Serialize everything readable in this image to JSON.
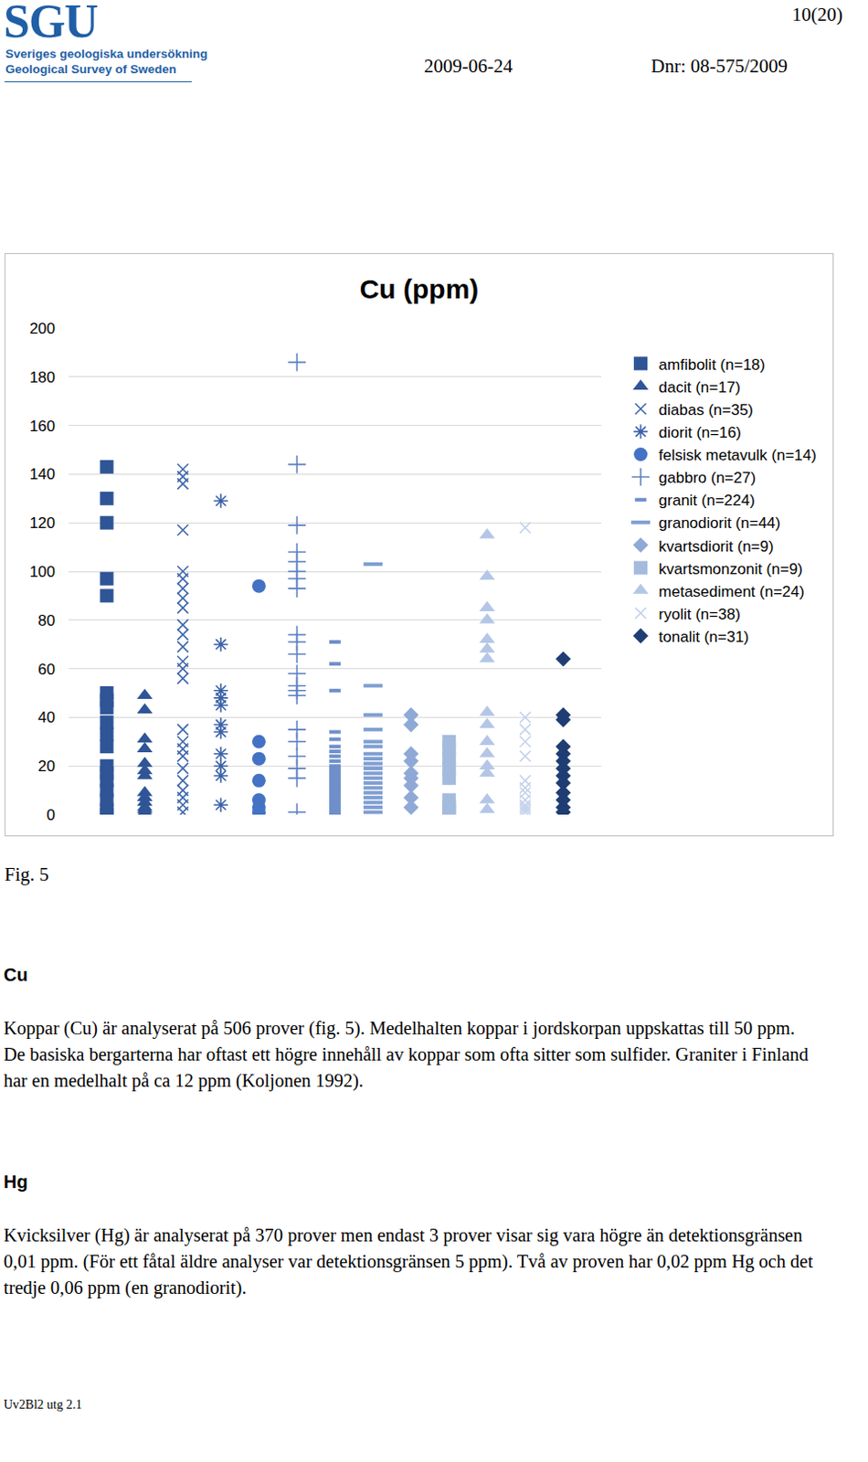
{
  "header": {
    "logo": "SGU",
    "org_sv": "Sveriges geologiska undersökning",
    "org_en": "Geological Survey of Sweden",
    "page": "10(20)",
    "date": "2009-06-24",
    "dnr": "Dnr: 08-575/2009"
  },
  "chart_data": {
    "type": "scatter",
    "title": "Cu (ppm)",
    "ylim": [
      0,
      200
    ],
    "yticks": [
      0,
      20,
      40,
      60,
      80,
      100,
      120,
      140,
      160,
      180,
      200
    ],
    "grid": true,
    "legend": "right",
    "tick_labels": "y",
    "series": [
      {
        "name": "amfibolit (n=18)",
        "color": "#2f5597",
        "marker": "square",
        "values": [
          143,
          130,
          120,
          97,
          90,
          50,
          47,
          44,
          38,
          33,
          28,
          20,
          17,
          14,
          10,
          6,
          2,
          0
        ]
      },
      {
        "name": "dacit (n=17)",
        "color": "#2f5597",
        "marker": "triangle",
        "values": [
          49,
          43,
          31,
          27,
          21,
          18,
          16,
          9,
          7,
          5,
          3,
          2,
          1,
          0
        ]
      },
      {
        "name": "diabas (n=35)",
        "color": "#3f68ad",
        "marker": "x",
        "values": [
          142,
          139,
          136,
          117,
          100,
          97,
          93,
          89,
          85,
          78,
          74,
          69,
          63,
          60,
          56,
          35,
          30,
          27,
          24,
          19,
          14,
          10,
          7,
          4,
          1
        ]
      },
      {
        "name": "diorit (n=16)",
        "color": "#3a62a8",
        "marker": "asterisk",
        "values": [
          129,
          70,
          51,
          48,
          45,
          37,
          34,
          25,
          20,
          16,
          4
        ]
      },
      {
        "name": "felsisk metavulk (n=14)",
        "color": "#4472c4",
        "marker": "circle",
        "values": [
          94,
          30,
          23,
          14,
          6,
          3,
          1
        ]
      },
      {
        "name": "gabbro (n=27)",
        "color": "#5b7fc0",
        "marker": "plus",
        "values": [
          186,
          144,
          119,
          108,
          104,
          100,
          97,
          93,
          74,
          71,
          66,
          58,
          53,
          51,
          49,
          35,
          30,
          24,
          19,
          15,
          1
        ]
      },
      {
        "name": "granit (n=224)",
        "color": "#6f8fca",
        "marker": "dash",
        "values": [
          71,
          62,
          51,
          34,
          31,
          28,
          26,
          24,
          22,
          20,
          19,
          18,
          17,
          16,
          15,
          14,
          13,
          12,
          11,
          10,
          9,
          8,
          7,
          6,
          5,
          4,
          3,
          2,
          1,
          0
        ]
      },
      {
        "name": "granodiorit (n=44)",
        "color": "#7f9fd3",
        "marker": "long-dash",
        "values": [
          103,
          53,
          41,
          35,
          30,
          28,
          25,
          23,
          21,
          19,
          17,
          15,
          13,
          11,
          9,
          7,
          5,
          3,
          1
        ]
      },
      {
        "name": "kvartsdiorit (n=9)",
        "color": "#8fa9d6",
        "marker": "diamond",
        "values": [
          41,
          37,
          25,
          22,
          17,
          15,
          12,
          7,
          3
        ]
      },
      {
        "name": "kvartsmonzonit (n=9)",
        "color": "#a4bbde",
        "marker": "square",
        "values": [
          30,
          27,
          23,
          19,
          15,
          6,
          3,
          2,
          1
        ]
      },
      {
        "name": "metasediment (n=24)",
        "color": "#b4c6e7",
        "marker": "triangle",
        "values": [
          115,
          98,
          85,
          80,
          72,
          68,
          64,
          42,
          37,
          30,
          25,
          20,
          17,
          6,
          2
        ]
      },
      {
        "name": "ryolit (n=38)",
        "color": "#c5d3ec",
        "marker": "x",
        "values": [
          118,
          40,
          35,
          30,
          24,
          14,
          11,
          9,
          6,
          4,
          3,
          2,
          1
        ]
      },
      {
        "name": "tonalit (n=31)",
        "color": "#1f3d73",
        "marker": "diamond",
        "values": [
          64,
          41,
          39,
          28,
          25,
          22,
          19,
          16,
          13,
          9,
          6,
          3,
          1
        ]
      }
    ]
  },
  "caption": "Fig. 5",
  "sections": [
    {
      "heading": "Cu",
      "text": "Koppar (Cu) är analyserat på 506 prover (fig. 5). Medelhalten koppar i jordskorpan uppskattas till 50 ppm. De basiska bergarterna har oftast ett högre innehåll av koppar som ofta sitter som sulfider. Graniter i Finland har en medelhalt på ca 12 ppm (Koljonen 1992)."
    },
    {
      "heading": "Hg",
      "text": "Kvicksilver (Hg) är analyserat på 370 prover men endast 3 prover visar sig vara högre än detektionsgränsen 0,01 ppm. (För ett fåtal äldre analyser var detektionsgränsen 5 ppm). Två av proven har 0,02 ppm Hg och det tredje 0,06 ppm (en granodiorit)."
    }
  ],
  "footer": "Uv2Bl2 utg 2.1"
}
